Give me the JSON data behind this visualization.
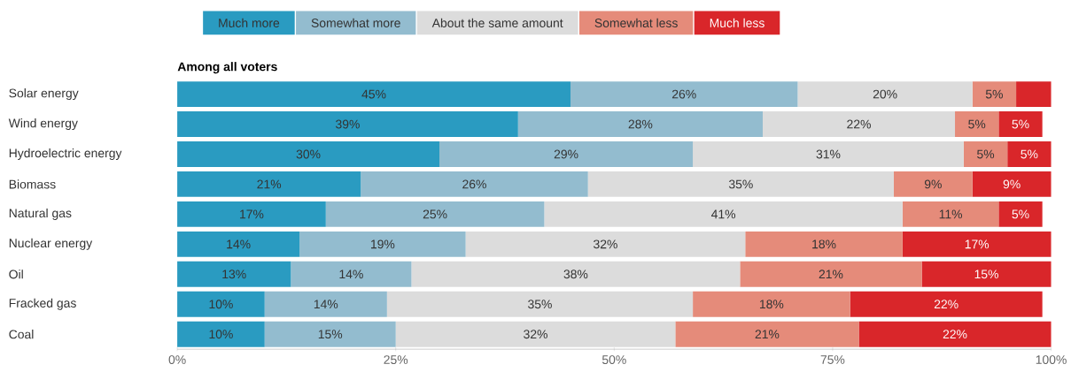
{
  "chart_data": {
    "type": "bar",
    "orientation": "horizontal",
    "stacked": true,
    "title": "Among all voters",
    "legend": "top",
    "categories": [
      "Solar energy",
      "Wind energy",
      "Hydroelectric energy",
      "Biomass",
      "Natural gas",
      "Nuclear energy",
      "Oil",
      "Fracked gas",
      "Coal"
    ],
    "xlim": [
      0,
      100
    ],
    "xticks": [
      {
        "value": 0,
        "label": "0%"
      },
      {
        "value": 25,
        "label": "25%"
      },
      {
        "value": 50,
        "label": "50%"
      },
      {
        "value": 75,
        "label": "75%"
      },
      {
        "value": 100,
        "label": "100%"
      }
    ],
    "series": [
      {
        "name": "Much more",
        "color": "#2a9bc1",
        "values": [
          45,
          39,
          30,
          21,
          17,
          14,
          13,
          10,
          10
        ],
        "value_labels": [
          "45%",
          "39%",
          "30%",
          "21%",
          "17%",
          "14%",
          "13%",
          "10%",
          "10%"
        ]
      },
      {
        "name": "Somewhat more",
        "color": "#93bccf",
        "values": [
          26,
          28,
          29,
          26,
          25,
          19,
          13.8,
          14,
          15
        ],
        "value_labels": [
          "26%",
          "28%",
          "29%",
          "26%",
          "25%",
          "19%",
          "14%",
          "14%",
          "15%"
        ]
      },
      {
        "name": "About the same amount",
        "color": "#dcdcdc",
        "values": [
          20,
          22,
          31,
          35,
          41,
          32,
          37.6,
          35,
          32
        ],
        "value_labels": [
          "20%",
          "22%",
          "31%",
          "35%",
          "41%",
          "32%",
          "38%",
          "35%",
          "32%"
        ]
      },
      {
        "name": "Somewhat less",
        "color": "#e58b7a",
        "values": [
          5,
          5,
          5,
          9,
          11,
          18,
          20.8,
          18,
          21
        ],
        "value_labels": [
          "5%",
          "5%",
          "5%",
          "9%",
          "11%",
          "18%",
          "21%",
          "18%",
          "21%"
        ]
      },
      {
        "name": "Much less",
        "color": "#d9262a",
        "values": [
          4,
          5,
          5,
          9,
          5,
          17,
          14.8,
          22,
          22
        ],
        "value_labels": [
          null,
          "5%",
          "5%",
          "9%",
          "5%",
          "17%",
          "15%",
          "22%",
          "22%"
        ]
      }
    ]
  }
}
